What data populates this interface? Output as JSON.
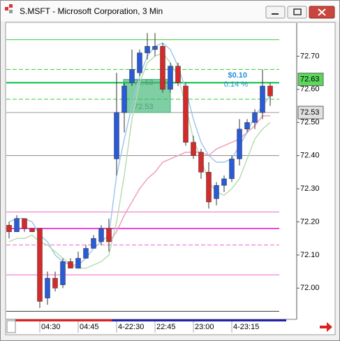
{
  "chart_data": {
    "type": "candlestick",
    "title": "S.MSFT - Microsoft Corporation, 3 Min",
    "categories": [
      null,
      null,
      null,
      null,
      "04:30",
      null,
      null,
      null,
      null,
      "04:45",
      null,
      null,
      null,
      null,
      "4-22:30",
      null,
      null,
      null,
      null,
      "22:45",
      null,
      null,
      null,
      null,
      "23:00",
      null,
      null,
      null,
      null,
      "4-23:15",
      null,
      null,
      null,
      null,
      null
    ],
    "open": [
      72.19,
      72.17,
      72.21,
      72.18,
      72.18,
      71.97,
      72.03,
      72.01,
      72.08,
      72.06,
      72.09,
      72.12,
      72.14,
      72.18,
      72.39,
      72.53,
      72.62,
      72.65,
      72.71,
      72.72,
      72.73,
      72.6,
      72.67,
      72.61,
      72.44,
      72.41,
      72.35,
      72.27,
      72.31,
      72.33,
      72.39,
      72.48,
      72.5,
      72.53,
      72.61
    ],
    "high": [
      72.2,
      72.22,
      72.21,
      72.18,
      72.18,
      72.05,
      72.05,
      72.09,
      72.09,
      72.11,
      72.13,
      72.16,
      72.19,
      72.21,
      72.65,
      72.62,
      72.72,
      72.72,
      72.77,
      72.77,
      72.74,
      72.68,
      72.68,
      72.62,
      72.46,
      72.42,
      72.38,
      72.32,
      72.34,
      72.4,
      72.51,
      72.51,
      72.54,
      72.66,
      72.62
    ],
    "low": [
      72.15,
      72.17,
      72.17,
      72.17,
      71.94,
      71.95,
      71.99,
      72.0,
      72.06,
      72.06,
      72.09,
      72.12,
      72.13,
      72.11,
      72.34,
      72.47,
      72.61,
      72.64,
      72.69,
      72.7,
      72.59,
      72.59,
      72.61,
      72.43,
      72.39,
      72.33,
      72.24,
      72.25,
      72.29,
      72.32,
      72.37,
      72.47,
      72.48,
      72.51,
      72.55
    ],
    "close": [
      72.17,
      72.21,
      72.18,
      72.17,
      71.96,
      72.03,
      72.0,
      72.08,
      72.06,
      72.09,
      72.12,
      72.15,
      72.18,
      72.14,
      72.53,
      72.61,
      72.66,
      72.71,
      72.73,
      72.73,
      72.6,
      72.67,
      72.62,
      72.44,
      72.4,
      72.35,
      72.26,
      72.31,
      72.33,
      72.39,
      72.48,
      72.5,
      72.53,
      72.61,
      72.58
    ],
    "up_color": "#2a5bd7",
    "down_color": "#d42a2a",
    "overlays": [
      {
        "color": "#9ec8ea",
        "values": [
          72.2,
          72.21,
          72.21,
          72.2,
          72.16,
          72.14,
          72.1,
          72.08,
          72.07,
          72.07,
          72.09,
          72.12,
          72.14,
          72.16,
          72.34,
          72.45,
          72.55,
          72.64,
          72.7,
          72.73,
          72.74,
          72.72,
          72.67,
          72.6,
          72.51,
          72.44,
          72.4,
          72.38,
          72.38,
          72.39,
          72.43,
          72.47,
          72.52,
          72.55,
          72.58
        ]
      },
      {
        "color": "#b8dcb0",
        "values": [
          72.14,
          72.15,
          72.15,
          72.16,
          72.14,
          72.13,
          72.11,
          72.09,
          72.07,
          72.06,
          72.06,
          72.07,
          72.08,
          72.1,
          72.2,
          72.34,
          72.51,
          72.62,
          72.68,
          72.7,
          72.71,
          72.68,
          72.64,
          72.55,
          72.45,
          72.39,
          72.32,
          72.29,
          72.28,
          72.3,
          72.33,
          72.39,
          72.45,
          72.48,
          72.5
        ]
      },
      {
        "color": "#f0a0b8",
        "values": [
          null,
          null,
          null,
          null,
          null,
          null,
          null,
          null,
          null,
          null,
          null,
          null,
          null,
          72.14,
          72.17,
          72.22,
          72.26,
          72.3,
          72.33,
          72.35,
          72.38,
          72.39,
          72.4,
          72.41,
          72.41,
          72.41,
          72.4,
          72.42,
          72.43,
          72.44,
          72.45,
          72.47,
          72.49,
          72.52,
          72.52
        ]
      }
    ],
    "levels": [
      {
        "value": 72.75,
        "color": "#33cc33",
        "style": "solid"
      },
      {
        "value": 72.66,
        "color": "#33cc33",
        "style": "dashed"
      },
      {
        "value": 72.62,
        "color": "#00c040",
        "style": "thick"
      },
      {
        "value": 72.57,
        "color": "#33cc33",
        "style": "dashed"
      },
      {
        "value": 72.53,
        "color": "#999999",
        "style": "solid"
      },
      {
        "value": 72.4,
        "color": "#888888",
        "style": "solid"
      },
      {
        "value": 72.23,
        "color": "#ee66cc",
        "style": "solid"
      },
      {
        "value": 72.18,
        "color": "#ee44dd",
        "style": "thick"
      },
      {
        "value": 72.13,
        "color": "#ee66cc",
        "style": "dashed"
      },
      {
        "value": 72.04,
        "color": "#ee66cc",
        "style": "solid"
      },
      {
        "value": 71.93,
        "color": "#444444",
        "style": "solid"
      }
    ],
    "range_box": {
      "high": {
        "value": 72.63,
        "label": "72.63"
      },
      "low": {
        "value": 72.53,
        "label": "72.53"
      },
      "color": "#3cb371"
    },
    "annotations": [
      "$0.10",
      "0.14 %"
    ],
    "price_tags": [
      {
        "value": 72.63,
        "label": "72.63",
        "color": "#5cd65c"
      },
      {
        "value": 72.53,
        "label": "72.53",
        "color": "#e0e0e0"
      }
    ],
    "ylim": [
      71.91,
      72.8
    ],
    "yticks": [
      {
        "value": 72.0,
        "label": "72.00"
      },
      {
        "value": 72.1,
        "label": "72.10"
      },
      {
        "value": 72.2,
        "label": "72.20"
      },
      {
        "value": 72.3,
        "label": "72.30"
      },
      {
        "value": 72.4,
        "label": "72.40"
      },
      {
        "value": 72.5,
        "label": "72.50"
      },
      {
        "value": 72.6,
        "label": "72.60"
      },
      {
        "value": 72.7,
        "label": "72.70"
      }
    ]
  }
}
